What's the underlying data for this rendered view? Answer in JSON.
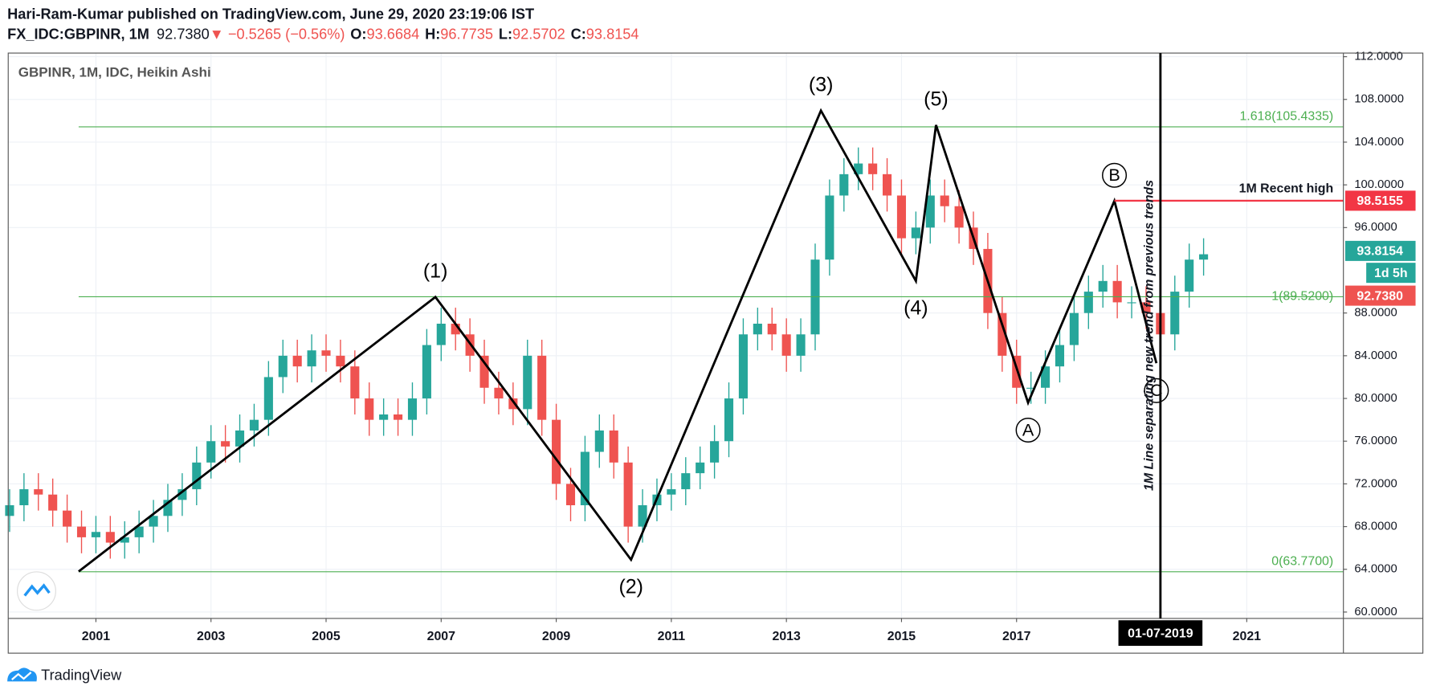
{
  "header": {
    "byline": "Hari-Ram-Kumar published on TradingView.com, June 29, 2020 23:19:06 IST",
    "symbol": "FX_IDC:GBPINR, 1M",
    "last": "92.7380",
    "change": "▼ −0.5265 (−0.56%)",
    "ohlc": [
      {
        "label": "O:",
        "value": "93.6684"
      },
      {
        "label": "H:",
        "value": "96.7735"
      },
      {
        "label": "L:",
        "value": "92.5702"
      },
      {
        "label": "C:",
        "value": "93.8154"
      }
    ]
  },
  "footer": "TradingView",
  "chart_data": {
    "type": "candlestick",
    "title": "GBPINR, 1M, IDC, Heikin Ashi",
    "up_color": "#26a69a",
    "down_color": "#ef5350",
    "xlim": [
      1999.476,
      2022.68
    ],
    "xticks": [
      2001,
      2003,
      2005,
      2007,
      2009,
      2011,
      2013,
      2015,
      2017,
      2021
    ],
    "ylim": [
      59.4,
      112.34
    ],
    "yticks": [
      {
        "value": 60,
        "label": "60.0000"
      },
      {
        "value": 64,
        "label": "64.0000"
      },
      {
        "value": 68,
        "label": "68.0000"
      },
      {
        "value": 72,
        "label": "72.0000"
      },
      {
        "value": 76,
        "label": "76.0000"
      },
      {
        "value": 80,
        "label": "80.0000"
      },
      {
        "value": 84,
        "label": "84.0000"
      },
      {
        "value": 88,
        "label": "88.0000"
      },
      {
        "value": 96,
        "label": "96.0000"
      },
      {
        "value": 100,
        "label": "100.0000"
      },
      {
        "value": 104,
        "label": "104.0000"
      },
      {
        "value": 108,
        "label": "108.0000"
      },
      {
        "value": 112,
        "label": "112.0000"
      }
    ],
    "grid": true,
    "x": [
      1999.5,
      1999.75,
      2000,
      2000.25,
      2000.5,
      2000.75,
      2001,
      2001.25,
      2001.5,
      2001.75,
      2002,
      2002.25,
      2002.5,
      2002.75,
      2003,
      2003.25,
      2003.5,
      2003.75,
      2004,
      2004.25,
      2004.5,
      2004.75,
      2005,
      2005.25,
      2005.5,
      2005.75,
      2006,
      2006.25,
      2006.5,
      2006.75,
      2007,
      2007.25,
      2007.5,
      2007.75,
      2008,
      2008.25,
      2008.5,
      2008.75,
      2009,
      2009.25,
      2009.5,
      2009.75,
      2010,
      2010.25,
      2010.5,
      2010.75,
      2011,
      2011.25,
      2011.5,
      2011.75,
      2012,
      2012.25,
      2012.5,
      2012.75,
      2013,
      2013.25,
      2013.5,
      2013.75,
      2014,
      2014.25,
      2014.5,
      2014.75,
      2015,
      2015.25,
      2015.5,
      2015.75,
      2016,
      2016.25,
      2016.5,
      2016.75,
      2017,
      2017.25,
      2017.5,
      2017.75,
      2018,
      2018.25,
      2018.5,
      2018.75,
      2019,
      2019.25,
      2019.5,
      2019.75,
      2020,
      2020.25
    ],
    "ohlc": [
      [
        69,
        71.5,
        67.5,
        70
      ],
      [
        70,
        73,
        68.5,
        71.5
      ],
      [
        71.5,
        73,
        69.5,
        71
      ],
      [
        71,
        72.5,
        68,
        69.5
      ],
      [
        69.5,
        71,
        66.5,
        68
      ],
      [
        68,
        69.5,
        65.5,
        67
      ],
      [
        67,
        69,
        65.5,
        67.5
      ],
      [
        67.5,
        69,
        65,
        66.5
      ],
      [
        66.5,
        68.5,
        65,
        67
      ],
      [
        67,
        69.5,
        65.5,
        68
      ],
      [
        68,
        70.5,
        66.5,
        69
      ],
      [
        69,
        72,
        67.5,
        70.5
      ],
      [
        70.5,
        73,
        69,
        71.5
      ],
      [
        71.5,
        75.5,
        70,
        74
      ],
      [
        74,
        77.5,
        72.5,
        76
      ],
      [
        76,
        77.5,
        74,
        75.5
      ],
      [
        75.5,
        78.5,
        74,
        77
      ],
      [
        77,
        79.5,
        75.5,
        78
      ],
      [
        78,
        83.5,
        76.5,
        82
      ],
      [
        82,
        85.5,
        80.5,
        84
      ],
      [
        84,
        85.5,
        81.5,
        83
      ],
      [
        83,
        86,
        81.5,
        84.5
      ],
      [
        84.5,
        86,
        82.5,
        84
      ],
      [
        84,
        85.5,
        81.5,
        83
      ],
      [
        83,
        84.5,
        78.5,
        80
      ],
      [
        80,
        81.5,
        76.5,
        78
      ],
      [
        78,
        80,
        76.5,
        78.5
      ],
      [
        78.5,
        80,
        76.5,
        78
      ],
      [
        78,
        81.5,
        76.5,
        80
      ],
      [
        80,
        86.5,
        78.5,
        85
      ],
      [
        85,
        88.5,
        83.5,
        87
      ],
      [
        87,
        88.5,
        84.5,
        86
      ],
      [
        86,
        87.5,
        82.5,
        84
      ],
      [
        84,
        85.5,
        79.5,
        81
      ],
      [
        81,
        82.5,
        78.5,
        80
      ],
      [
        80,
        81.5,
        77.5,
        79
      ],
      [
        79,
        85.5,
        77.5,
        84
      ],
      [
        84,
        85.5,
        76.5,
        78
      ],
      [
        78,
        79.5,
        70.5,
        72
      ],
      [
        72,
        73.5,
        68.5,
        70
      ],
      [
        70,
        76.5,
        68.5,
        75
      ],
      [
        75,
        78.5,
        73.5,
        77
      ],
      [
        77,
        78.5,
        72.5,
        74
      ],
      [
        74,
        75.5,
        66.5,
        68
      ],
      [
        68,
        71.5,
        66.5,
        70
      ],
      [
        70,
        72.5,
        68.5,
        71
      ],
      [
        71,
        73,
        69.5,
        71.5
      ],
      [
        71.5,
        74.5,
        70,
        73
      ],
      [
        73,
        75.5,
        71.5,
        74
      ],
      [
        74,
        77.5,
        72.5,
        76
      ],
      [
        76,
        81.5,
        74.5,
        80
      ],
      [
        80,
        87.5,
        78.5,
        86
      ],
      [
        86,
        88.5,
        84.5,
        87
      ],
      [
        87,
        88.5,
        84.5,
        86
      ],
      [
        86,
        87.5,
        82.5,
        84
      ],
      [
        84,
        87.5,
        82.5,
        86
      ],
      [
        86,
        94.5,
        84.5,
        93
      ],
      [
        93,
        100.5,
        91.5,
        99
      ],
      [
        99,
        102.5,
        97.5,
        101
      ],
      [
        101,
        103.5,
        99.5,
        102
      ],
      [
        102,
        103.5,
        99.5,
        101
      ],
      [
        101,
        102.5,
        97.5,
        99
      ],
      [
        99,
        100.5,
        93.5,
        95
      ],
      [
        95,
        97.5,
        93.5,
        96
      ],
      [
        96,
        100.5,
        94.5,
        99
      ],
      [
        99,
        100.5,
        96.5,
        98
      ],
      [
        98,
        99.5,
        94.5,
        96
      ],
      [
        96,
        97.5,
        92.5,
        94
      ],
      [
        94,
        95.5,
        86.5,
        88
      ],
      [
        88,
        89.5,
        82.5,
        84
      ],
      [
        84,
        85.5,
        79.5,
        81
      ],
      [
        81,
        82.5,
        79.5,
        81
      ],
      [
        81,
        84.5,
        79.5,
        83
      ],
      [
        83,
        86.5,
        81.5,
        85
      ],
      [
        85,
        89.5,
        83.5,
        88
      ],
      [
        88,
        91.5,
        86.5,
        90
      ],
      [
        90,
        92.5,
        88.5,
        91
      ],
      [
        91,
        92.5,
        87.5,
        89
      ],
      [
        89,
        90.5,
        87.5,
        89
      ],
      [
        89,
        90.5,
        86.5,
        88
      ],
      [
        88,
        89.5,
        84.5,
        86
      ],
      [
        86,
        91.5,
        84.5,
        90
      ],
      [
        90,
        94.5,
        88.5,
        93
      ],
      [
        93,
        95,
        91.5,
        93.5
      ]
    ],
    "fib_levels": [
      {
        "value": 105.4335,
        "label": "1.618(105.4335)"
      },
      {
        "value": 89.52,
        "label": "1(89.5200)"
      },
      {
        "value": 63.77,
        "label": "0(63.7700)"
      }
    ],
    "fib_color": "#4caf50",
    "waves": [
      {
        "x": 2000.7,
        "y": 63.8
      },
      {
        "x": 2006.9,
        "y": 89.5,
        "label": "(1)"
      },
      {
        "x": 2010.3,
        "y": 64.9,
        "label": "(2)"
      },
      {
        "x": 2013.6,
        "y": 106.95,
        "label": "(3)"
      },
      {
        "x": 2015.25,
        "y": 91.0,
        "label": "(4)"
      },
      {
        "x": 2015.6,
        "y": 105.6,
        "label": "(5)"
      },
      {
        "x": 2017.2,
        "y": 79.6,
        "label": "A"
      },
      {
        "x": 2018.7,
        "y": 98.5,
        "label": "B"
      },
      {
        "x": 2019.43,
        "y": 83.3,
        "label": "C"
      }
    ],
    "recent_high": {
      "value": 98.5155,
      "label": "98.5155",
      "text": "1M Recent high",
      "color": "#f23645"
    },
    "vertical_line": {
      "x": 2019.5,
      "date_label": "01-07-2019",
      "text": "1M Line separating new trend from previous trends"
    },
    "close_badge": {
      "value": 93.8154,
      "label": "93.8154",
      "countdown": "1d 5h"
    },
    "last_badge": {
      "value": 92.738,
      "label": "92.7380"
    }
  }
}
